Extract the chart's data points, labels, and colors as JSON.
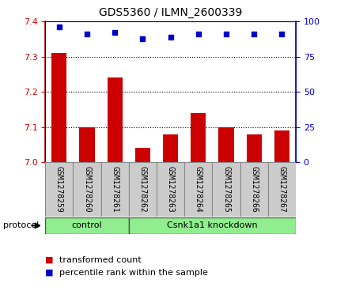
{
  "title": "GDS5360 / ILMN_2600339",
  "samples": [
    "GSM1278259",
    "GSM1278260",
    "GSM1278261",
    "GSM1278262",
    "GSM1278263",
    "GSM1278264",
    "GSM1278265",
    "GSM1278266",
    "GSM1278267"
  ],
  "bar_values": [
    7.31,
    7.1,
    7.24,
    7.04,
    7.08,
    7.14,
    7.1,
    7.08,
    7.09
  ],
  "percentile_values": [
    96,
    91,
    92,
    88,
    89,
    91,
    91,
    91,
    91
  ],
  "ylim_left": [
    7.0,
    7.4
  ],
  "ylim_right": [
    0,
    100
  ],
  "yticks_left": [
    7.0,
    7.1,
    7.2,
    7.3,
    7.4
  ],
  "yticks_right": [
    0,
    25,
    50,
    75,
    100
  ],
  "bar_color": "#cc0000",
  "dot_color": "#0000cc",
  "control_samples": 3,
  "control_label": "control",
  "knockdown_label": "Csnk1a1 knockdown",
  "protocol_label": "protocol",
  "legend_bar_label": "transformed count",
  "legend_dot_label": "percentile rank within the sample",
  "plot_bg_color": "#ffffff",
  "sample_box_color": "#cccccc",
  "group_fill_color": "#90ee90",
  "left_tick_color": "#cc0000",
  "right_tick_color": "#0000cc",
  "grid_linestyle": "dotted",
  "grid_color": "#000000",
  "grid_linewidth": 0.8
}
